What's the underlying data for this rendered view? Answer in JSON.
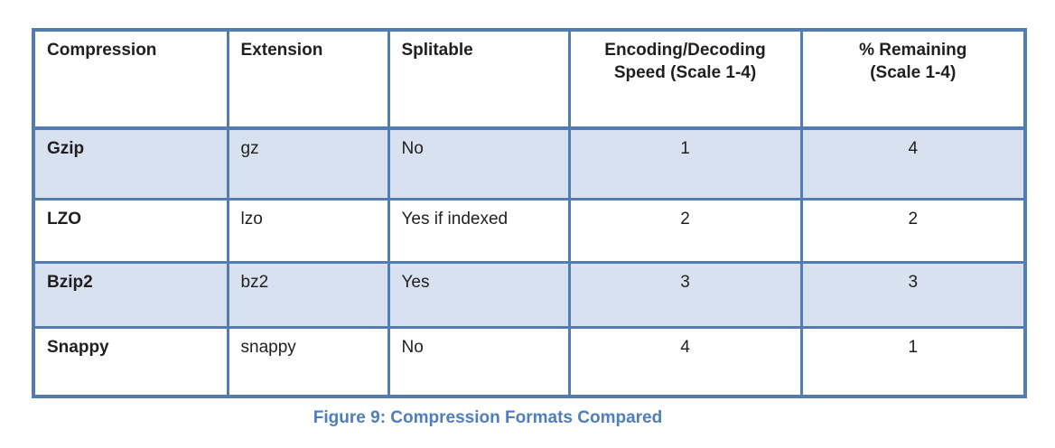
{
  "colors": {
    "border_blue": "#537cb4",
    "row_shade_blue": "#d8e1ef",
    "caption_blue": "#4d7ebf",
    "text": "#1f1f1f"
  },
  "table": {
    "headers": [
      {
        "lines": [
          "Compression",
          ""
        ]
      },
      {
        "lines": [
          "Extension",
          ""
        ]
      },
      {
        "lines": [
          "Splitable",
          ""
        ]
      },
      {
        "lines": [
          "Encoding/Decoding",
          "Speed (Scale 1-4)"
        ]
      },
      {
        "lines": [
          "% Remaining",
          "(Scale 1-4)"
        ]
      }
    ],
    "rows": [
      {
        "compression": "Gzip",
        "extension": "gz",
        "splitable": "No",
        "speed": "1",
        "remaining": "4"
      },
      {
        "compression": "LZO",
        "extension": "lzo",
        "splitable": "Yes if indexed",
        "speed": "2",
        "remaining": "2"
      },
      {
        "compression": "Bzip2",
        "extension": "bz2",
        "splitable": "Yes",
        "speed": "3",
        "remaining": "3"
      },
      {
        "compression": "Snappy",
        "extension": "snappy",
        "splitable": "No",
        "speed": "4",
        "remaining": "1"
      }
    ]
  },
  "caption": "Figure 9: Compression Formats Compared"
}
